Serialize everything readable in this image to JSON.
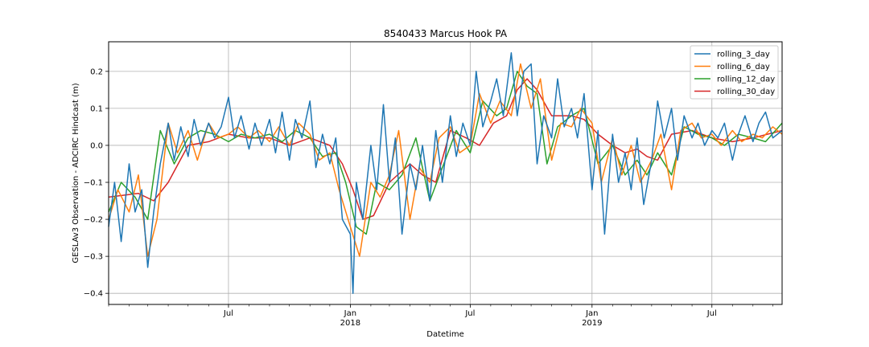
{
  "chart_data": {
    "type": "line",
    "title": "8540433 Marcus Hook PA",
    "xlabel": "Datetime",
    "ylabel": "GESLAv3 Observation - ADCIRC Hindcast (m)",
    "xlim": [
      "2017-01-01",
      "2019-10-15"
    ],
    "ylim": [
      -0.43,
      0.28
    ],
    "grid": true,
    "legend_position": "top-right",
    "y_ticks": [
      {
        "value": 0.2,
        "label": "0.2"
      },
      {
        "value": 0.1,
        "label": "0.1"
      },
      {
        "value": 0.0,
        "label": "0.0"
      },
      {
        "value": -0.1,
        "label": "−0.1"
      },
      {
        "value": -0.2,
        "label": "−0.2"
      },
      {
        "value": -0.3,
        "label": "−0.3"
      },
      {
        "value": -0.4,
        "label": "−0.4"
      }
    ],
    "x_ticks": [
      {
        "date": "2017-07-01",
        "label": "Jul",
        "sublabel": ""
      },
      {
        "date": "2018-01-01",
        "label": "Jan",
        "sublabel": "2018"
      },
      {
        "date": "2018-07-01",
        "label": "Jul",
        "sublabel": ""
      },
      {
        "date": "2019-01-01",
        "label": "Jan",
        "sublabel": "2019"
      },
      {
        "date": "2019-07-01",
        "label": "Jul",
        "sublabel": ""
      }
    ],
    "x_minor_ticks": [
      "2017-01-01",
      "2017-02-01",
      "2017-03-01",
      "2017-04-01",
      "2017-05-01",
      "2017-06-01",
      "2017-08-01",
      "2017-09-01",
      "2017-10-01",
      "2017-11-01",
      "2017-12-01",
      "2018-02-01",
      "2018-03-01",
      "2018-04-01",
      "2018-05-01",
      "2018-06-01",
      "2018-08-01",
      "2018-09-01",
      "2018-10-01",
      "2018-11-01",
      "2018-12-01",
      "2019-02-01",
      "2019-03-01",
      "2019-04-01",
      "2019-05-01",
      "2019-06-01",
      "2019-08-01",
      "2019-09-01",
      "2019-10-01"
    ],
    "series": [
      {
        "name": "rolling_30_day",
        "color": "#d62728",
        "x": [
          "2017-01-01",
          "2017-02-15",
          "2017-03-10",
          "2017-04-01",
          "2017-05-01",
          "2017-06-01",
          "2017-07-01",
          "2017-08-01",
          "2017-09-01",
          "2017-10-01",
          "2017-11-01",
          "2017-12-01",
          "2017-12-20",
          "2018-01-05",
          "2018-01-20",
          "2018-02-05",
          "2018-03-01",
          "2018-04-01",
          "2018-04-20",
          "2018-05-10",
          "2018-06-01",
          "2018-06-25",
          "2018-07-15",
          "2018-08-05",
          "2018-08-25",
          "2018-09-10",
          "2018-09-25",
          "2018-10-10",
          "2018-11-01",
          "2018-12-01",
          "2018-12-20",
          "2019-01-10",
          "2019-02-01",
          "2019-02-20",
          "2019-03-10",
          "2019-03-25",
          "2019-04-10",
          "2019-05-01",
          "2019-06-01",
          "2019-07-01",
          "2019-08-01",
          "2019-09-01",
          "2019-10-15"
        ],
        "y": [
          -0.14,
          -0.13,
          -0.15,
          -0.1,
          0.0,
          0.01,
          0.03,
          0.02,
          0.02,
          0.0,
          0.02,
          0.0,
          -0.05,
          -0.12,
          -0.2,
          -0.19,
          -0.1,
          -0.05,
          -0.08,
          -0.1,
          0.04,
          0.02,
          0.0,
          0.06,
          0.08,
          0.15,
          0.18,
          0.15,
          0.08,
          0.08,
          0.07,
          0.03,
          0.0,
          -0.02,
          -0.01,
          -0.03,
          -0.04,
          0.03,
          0.04,
          0.02,
          0.01,
          0.02,
          0.04
        ]
      },
      {
        "name": "rolling_12_day",
        "color": "#2ca02c",
        "x": [
          "2017-01-01",
          "2017-01-20",
          "2017-02-10",
          "2017-03-01",
          "2017-03-20",
          "2017-04-10",
          "2017-05-01",
          "2017-05-20",
          "2017-06-10",
          "2017-07-01",
          "2017-07-20",
          "2017-08-10",
          "2017-09-01",
          "2017-09-20",
          "2017-10-10",
          "2017-11-01",
          "2017-11-20",
          "2017-12-10",
          "2017-12-25",
          "2018-01-10",
          "2018-01-25",
          "2018-02-10",
          "2018-03-01",
          "2018-03-20",
          "2018-04-10",
          "2018-05-01",
          "2018-05-20",
          "2018-06-10",
          "2018-07-01",
          "2018-07-20",
          "2018-08-10",
          "2018-08-25",
          "2018-09-10",
          "2018-09-25",
          "2018-10-10",
          "2018-10-25",
          "2018-11-10",
          "2018-12-01",
          "2018-12-20",
          "2019-01-10",
          "2019-02-01",
          "2019-02-20",
          "2019-03-10",
          "2019-03-25",
          "2019-04-10",
          "2019-05-01",
          "2019-05-20",
          "2019-06-10",
          "2019-07-01",
          "2019-07-20",
          "2019-08-10",
          "2019-09-01",
          "2019-09-20",
          "2019-10-15"
        ],
        "y": [
          -0.18,
          -0.1,
          -0.14,
          -0.2,
          0.04,
          -0.05,
          0.02,
          0.04,
          0.03,
          0.01,
          0.03,
          0.02,
          0.03,
          0.01,
          0.04,
          0.02,
          -0.03,
          -0.02,
          -0.1,
          -0.22,
          -0.24,
          -0.1,
          -0.12,
          -0.08,
          0.02,
          -0.15,
          -0.06,
          0.04,
          -0.02,
          0.12,
          0.08,
          0.1,
          0.2,
          0.16,
          0.14,
          -0.05,
          0.05,
          0.08,
          0.1,
          -0.05,
          0.0,
          -0.08,
          -0.04,
          -0.08,
          -0.02,
          -0.08,
          0.05,
          0.03,
          0.02,
          0.0,
          0.03,
          0.02,
          0.01,
          0.06
        ]
      },
      {
        "name": "rolling_6_day",
        "color": "#ff7f0e",
        "x": [
          "2017-01-01",
          "2017-01-15",
          "2017-02-01",
          "2017-02-15",
          "2017-03-01",
          "2017-03-15",
          "2017-04-01",
          "2017-04-15",
          "2017-05-01",
          "2017-05-15",
          "2017-06-01",
          "2017-06-15",
          "2017-07-01",
          "2017-07-15",
          "2017-08-01",
          "2017-08-15",
          "2017-09-01",
          "2017-09-15",
          "2017-10-01",
          "2017-10-15",
          "2017-11-01",
          "2017-11-15",
          "2017-12-01",
          "2017-12-15",
          "2018-01-01",
          "2018-01-15",
          "2018-02-01",
          "2018-02-15",
          "2018-03-01",
          "2018-03-15",
          "2018-04-01",
          "2018-04-15",
          "2018-05-01",
          "2018-05-15",
          "2018-06-01",
          "2018-06-15",
          "2018-07-01",
          "2018-07-15",
          "2018-08-01",
          "2018-08-15",
          "2018-09-01",
          "2018-09-15",
          "2018-10-01",
          "2018-10-15",
          "2018-11-01",
          "2018-11-15",
          "2018-12-01",
          "2018-12-15",
          "2019-01-01",
          "2019-01-15",
          "2019-02-01",
          "2019-02-15",
          "2019-03-01",
          "2019-03-15",
          "2019-04-01",
          "2019-04-15",
          "2019-05-01",
          "2019-05-15",
          "2019-06-01",
          "2019-06-15",
          "2019-07-01",
          "2019-07-15",
          "2019-08-01",
          "2019-08-15",
          "2019-09-01",
          "2019-09-15",
          "2019-10-01",
          "2019-10-15"
        ],
        "y": [
          -0.2,
          -0.12,
          -0.18,
          -0.08,
          -0.3,
          -0.2,
          0.06,
          -0.02,
          0.04,
          -0.04,
          0.06,
          0.02,
          0.03,
          0.05,
          0.02,
          0.04,
          0.01,
          0.05,
          0.0,
          0.06,
          0.03,
          -0.04,
          -0.02,
          -0.12,
          -0.22,
          -0.3,
          -0.1,
          -0.14,
          -0.08,
          0.04,
          -0.2,
          -0.06,
          -0.1,
          0.02,
          0.05,
          -0.02,
          0.0,
          0.14,
          0.06,
          0.12,
          0.08,
          0.22,
          0.1,
          0.18,
          -0.04,
          0.06,
          0.05,
          0.1,
          0.06,
          -0.1,
          0.02,
          -0.08,
          0.0,
          -0.1,
          -0.04,
          0.03,
          -0.12,
          0.04,
          0.06,
          0.02,
          0.03,
          0.0,
          0.04,
          0.01,
          0.03,
          0.02,
          0.05,
          0.03
        ]
      },
      {
        "name": "rolling_3_day",
        "color": "#1f77b4",
        "x": [
          "2017-01-01",
          "2017-01-10",
          "2017-01-20",
          "2017-02-01",
          "2017-02-10",
          "2017-02-20",
          "2017-03-01",
          "2017-03-10",
          "2017-03-20",
          "2017-04-01",
          "2017-04-10",
          "2017-04-20",
          "2017-05-01",
          "2017-05-10",
          "2017-05-20",
          "2017-06-01",
          "2017-06-10",
          "2017-06-20",
          "2017-07-01",
          "2017-07-10",
          "2017-07-20",
          "2017-08-01",
          "2017-08-10",
          "2017-08-20",
          "2017-09-01",
          "2017-09-10",
          "2017-09-20",
          "2017-10-01",
          "2017-10-10",
          "2017-10-20",
          "2017-11-01",
          "2017-11-10",
          "2017-11-20",
          "2017-12-01",
          "2017-12-10",
          "2017-12-20",
          "2018-01-01",
          "2018-01-05",
          "2018-01-10",
          "2018-01-20",
          "2018-02-01",
          "2018-02-10",
          "2018-02-20",
          "2018-03-01",
          "2018-03-10",
          "2018-03-20",
          "2018-04-01",
          "2018-04-10",
          "2018-04-20",
          "2018-05-01",
          "2018-05-10",
          "2018-05-20",
          "2018-06-01",
          "2018-06-10",
          "2018-06-20",
          "2018-07-01",
          "2018-07-10",
          "2018-07-20",
          "2018-08-01",
          "2018-08-10",
          "2018-08-20",
          "2018-09-01",
          "2018-09-10",
          "2018-09-20",
          "2018-10-01",
          "2018-10-10",
          "2018-10-20",
          "2018-11-01",
          "2018-11-10",
          "2018-11-20",
          "2018-12-01",
          "2018-12-10",
          "2018-12-20",
          "2019-01-01",
          "2019-01-10",
          "2019-01-20",
          "2019-02-01",
          "2019-02-10",
          "2019-02-20",
          "2019-03-01",
          "2019-03-10",
          "2019-03-20",
          "2019-04-01",
          "2019-04-10",
          "2019-04-20",
          "2019-05-01",
          "2019-05-10",
          "2019-05-20",
          "2019-06-01",
          "2019-06-10",
          "2019-06-20",
          "2019-07-01",
          "2019-07-10",
          "2019-07-20",
          "2019-08-01",
          "2019-08-10",
          "2019-08-20",
          "2019-09-01",
          "2019-09-10",
          "2019-09-20",
          "2019-10-01",
          "2019-10-15"
        ],
        "y": [
          -0.22,
          -0.1,
          -0.26,
          -0.05,
          -0.18,
          -0.12,
          -0.33,
          -0.18,
          -0.05,
          0.06,
          -0.04,
          0.05,
          -0.03,
          0.07,
          0.0,
          0.06,
          0.02,
          0.05,
          0.13,
          0.02,
          0.08,
          -0.01,
          0.06,
          0.0,
          0.07,
          -0.02,
          0.09,
          -0.04,
          0.07,
          0.02,
          0.12,
          -0.06,
          0.03,
          -0.05,
          0.02,
          -0.2,
          -0.24,
          -0.4,
          -0.1,
          -0.2,
          0.0,
          -0.12,
          0.11,
          -0.1,
          0.02,
          -0.24,
          -0.05,
          -0.12,
          0.0,
          -0.15,
          0.04,
          -0.1,
          0.08,
          -0.03,
          0.06,
          0.0,
          0.2,
          0.05,
          0.12,
          0.18,
          0.08,
          0.25,
          0.08,
          0.2,
          0.22,
          -0.05,
          0.08,
          0.02,
          0.18,
          0.05,
          0.1,
          0.02,
          0.14,
          -0.12,
          0.04,
          -0.24,
          0.03,
          -0.1,
          -0.02,
          -0.12,
          0.02,
          -0.16,
          -0.04,
          0.12,
          0.02,
          0.1,
          -0.04,
          0.08,
          0.02,
          0.06,
          0.0,
          0.04,
          0.02,
          0.06,
          -0.04,
          0.03,
          0.08,
          0.01,
          0.06,
          0.09,
          0.02,
          0.04
        ]
      }
    ],
    "legend_order": [
      "rolling_3_day",
      "rolling_6_day",
      "rolling_12_day",
      "rolling_30_day"
    ]
  }
}
